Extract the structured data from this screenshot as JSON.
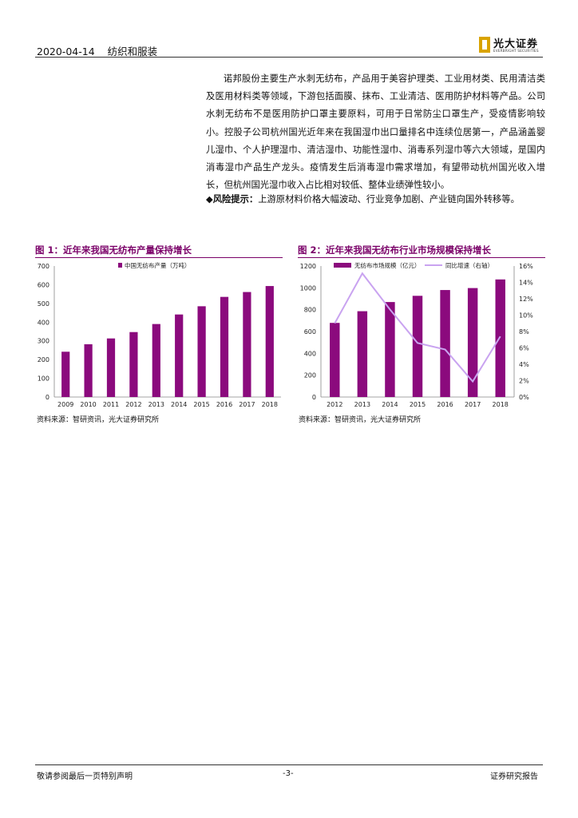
{
  "header": {
    "date": "2020-04-14",
    "section": "纺织和服装",
    "logo_text": "光大证券",
    "logo_sub": "EVERBRIGHT SECURITIES"
  },
  "body": {
    "paragraph": "诺邦股份主要生产水刺无纺布，产品用于美容护理类、工业用材类、民用清洁类及医用材料类等领域，下游包括面膜、抹布、工业清洁、医用防护材料等产品。公司水刺无纺布不是医用防护口罩主要原料，可用于日常防尘口罩生产，受疫情影响较小。控股子公司杭州国光近年来在我国湿巾出口量排名中连续位居第一，产品涵盖婴儿湿巾、个人护理湿巾、清洁湿巾、功能性湿巾、消毒系列湿巾等六大领域，是国内消毒湿巾产品生产龙头。疫情发生后消毒湿巾需求增加，有望带动杭州国光收入增长，但杭州国光湿巾收入占比相对较低、整体业绩弹性较小。",
    "risk_marker": "◆",
    "risk_label": "风险提示：",
    "risk_text": "上游原材料价格大幅波动、行业竞争加剧、产业链向国外转移等。"
  },
  "figure1": {
    "title": "图 1：近年来我国无纺布产量保持增长",
    "source": "资料来源：智研资讯，光大证券研究所"
  },
  "figure2": {
    "title": "图 2：近年来我国无纺布行业市场规模保持增长",
    "source": "资料来源：智研资讯，光大证券研究所"
  },
  "chart_data": [
    {
      "type": "bar",
      "title": "",
      "categories": [
        "2009",
        "2010",
        "2011",
        "2012",
        "2013",
        "2014",
        "2015",
        "2016",
        "2017",
        "2018"
      ],
      "series": [
        {
          "name": "中国无纺布产量（万吨）",
          "values": [
            242,
            282,
            313,
            347,
            390,
            441,
            485,
            535,
            561,
            593
          ]
        }
      ],
      "ylim": [
        0,
        700
      ],
      "yticks": [
        "0",
        "100",
        "200",
        "300",
        "400",
        "500",
        "600",
        "700"
      ],
      "bar_color": "#8b0a7d",
      "grid": false,
      "legend": "top"
    },
    {
      "type": "bar",
      "title": "",
      "categories": [
        "2012",
        "2013",
        "2014",
        "2015",
        "2016",
        "2017",
        "2018"
      ],
      "series": [
        {
          "name": "无纺布市场规模（亿元）",
          "values": [
            679,
            786,
            870,
            927,
            980,
            998,
            1077
          ],
          "axis": "left",
          "color": "#8b0a7d"
        },
        {
          "name": "同比增速（右轴）",
          "values": [
            0.09,
            0.151,
            0.107,
            0.066,
            0.058,
            0.019,
            0.074
          ],
          "axis": "right",
          "type": "line",
          "color": "#c9a3f0"
        }
      ],
      "ylim": [
        0,
        1200
      ],
      "yticks": [
        "0",
        "200",
        "400",
        "600",
        "800",
        "1000",
        "1200"
      ],
      "y2lim": [
        0,
        0.16
      ],
      "y2ticks": [
        "0%",
        "2%",
        "4%",
        "6%",
        "8%",
        "10%",
        "12%",
        "14%",
        "16%"
      ],
      "grid": false,
      "legend": "top"
    }
  ],
  "footer": {
    "left": "敬请参阅最后一页特别声明",
    "center": "-3-",
    "right": "证券研究报告"
  }
}
